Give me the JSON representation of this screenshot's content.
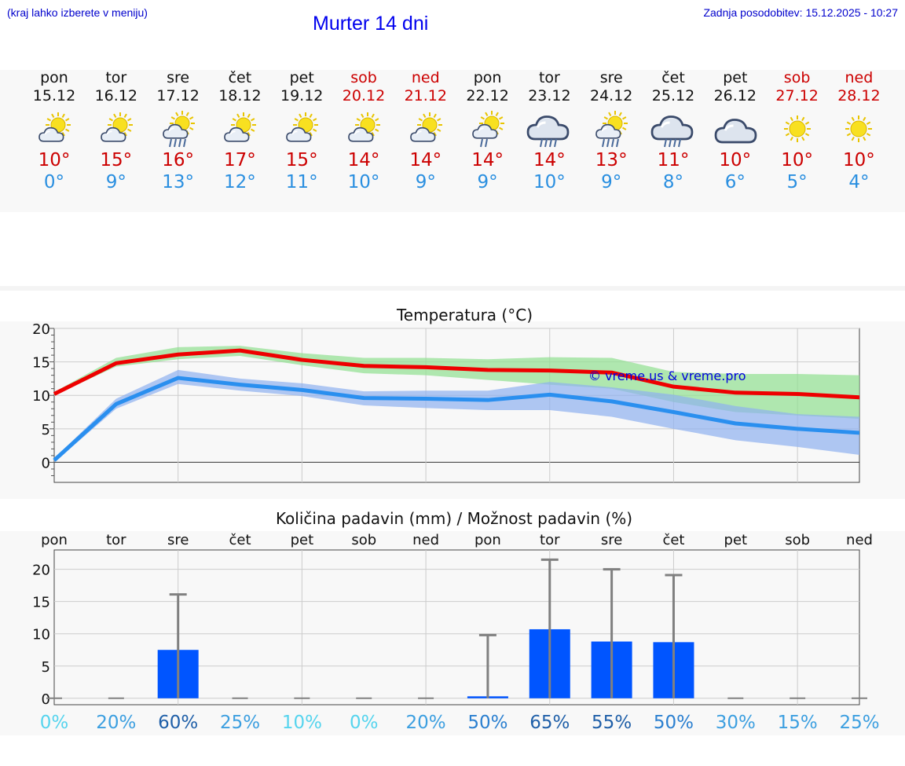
{
  "header": {
    "hint": "(kraj lahko izberete v meniju)",
    "title": "Murter 14 dni",
    "updated": "Zadnja posodobitev: 15.12.2025 - 10:27"
  },
  "colors": {
    "max": "#ee0000",
    "min": "#2a8fef",
    "weekend": "#cc0000",
    "bar": "#0055ff"
  },
  "days": [
    {
      "name": "pon",
      "date": "15.12",
      "weekend": false,
      "icon": "sun-cloud-icon",
      "tmax": "10°",
      "tmin": "0°"
    },
    {
      "name": "tor",
      "date": "16.12",
      "weekend": false,
      "icon": "sun-cloud-icon",
      "tmax": "15°",
      "tmin": "9°"
    },
    {
      "name": "sre",
      "date": "17.12",
      "weekend": false,
      "icon": "sun-rain-icon",
      "tmax": "16°",
      "tmin": "13°"
    },
    {
      "name": "čet",
      "date": "18.12",
      "weekend": false,
      "icon": "sun-cloud-icon",
      "tmax": "17°",
      "tmin": "12°"
    },
    {
      "name": "pet",
      "date": "19.12",
      "weekend": false,
      "icon": "sun-cloud-icon",
      "tmax": "15°",
      "tmin": "11°"
    },
    {
      "name": "sob",
      "date": "20.12",
      "weekend": true,
      "icon": "sun-cloud-icon",
      "tmax": "14°",
      "tmin": "10°"
    },
    {
      "name": "ned",
      "date": "21.12",
      "weekend": true,
      "icon": "sun-cloud-icon",
      "tmax": "14°",
      "tmin": "9°"
    },
    {
      "name": "pon",
      "date": "22.12",
      "weekend": false,
      "icon": "sun-rain-light-icon",
      "tmax": "14°",
      "tmin": "9°"
    },
    {
      "name": "tor",
      "date": "23.12",
      "weekend": false,
      "icon": "cloud-rain-icon",
      "tmax": "14°",
      "tmin": "10°"
    },
    {
      "name": "sre",
      "date": "24.12",
      "weekend": false,
      "icon": "sun-rain-icon",
      "tmax": "13°",
      "tmin": "9°"
    },
    {
      "name": "čet",
      "date": "25.12",
      "weekend": false,
      "icon": "cloud-rain-icon",
      "tmax": "11°",
      "tmin": "8°"
    },
    {
      "name": "pet",
      "date": "26.12",
      "weekend": false,
      "icon": "cloud-icon",
      "tmax": "10°",
      "tmin": "6°"
    },
    {
      "name": "sob",
      "date": "27.12",
      "weekend": true,
      "icon": "sun-icon",
      "tmax": "10°",
      "tmin": "5°"
    },
    {
      "name": "ned",
      "date": "28.12",
      "weekend": true,
      "icon": "sun-icon",
      "tmax": "10°",
      "tmin": "4°"
    }
  ],
  "chart_data": [
    {
      "type": "line",
      "title": "Temperatura (°C)",
      "ylim": [
        -3,
        20
      ],
      "yticks": [
        0,
        5,
        10,
        15,
        20
      ],
      "x": [
        0,
        1,
        2,
        3,
        4,
        5,
        6,
        7,
        8,
        9,
        10,
        11,
        12,
        13
      ],
      "watermark": "© vreme.us & vreme.pro",
      "series": [
        {
          "name": "max",
          "values": [
            10.2,
            14.8,
            16.1,
            16.7,
            15.3,
            14.4,
            14.2,
            13.8,
            13.7,
            13.4,
            11.3,
            10.4,
            10.2,
            9.7
          ],
          "band_low": [
            10.0,
            14.3,
            15.4,
            15.9,
            14.5,
            13.3,
            13.0,
            12.3,
            11.6,
            11.0,
            9.0,
            7.5,
            7.0,
            6.5
          ],
          "band_high": [
            10.5,
            15.6,
            17.2,
            17.4,
            16.3,
            15.6,
            15.6,
            15.4,
            15.7,
            15.6,
            13.5,
            13.2,
            13.2,
            13.0
          ]
        },
        {
          "name": "min",
          "values": [
            0.3,
            8.7,
            12.6,
            11.6,
            10.8,
            9.6,
            9.5,
            9.3,
            10.1,
            9.1,
            7.5,
            5.8,
            5.0,
            4.4
          ],
          "band_low": [
            0.0,
            8.0,
            11.7,
            10.7,
            9.9,
            8.5,
            8.1,
            7.8,
            7.8,
            6.8,
            5.0,
            3.3,
            2.3,
            1.1
          ],
          "band_high": [
            0.6,
            9.5,
            13.8,
            12.5,
            11.8,
            10.6,
            10.7,
            10.7,
            12.0,
            11.2,
            10.1,
            8.4,
            7.2,
            6.8
          ]
        }
      ]
    },
    {
      "type": "bar",
      "title": "Količina padavin (mm) / Možnost padavin (%)",
      "ylim": [
        -1,
        23
      ],
      "yticks": [
        0,
        5,
        10,
        15,
        20
      ],
      "categories": [
        "pon",
        "tor",
        "sre",
        "čet",
        "pet",
        "sob",
        "ned",
        "pon",
        "tor",
        "sre",
        "čet",
        "pet",
        "sob",
        "ned"
      ],
      "values": [
        0,
        0,
        7.5,
        0,
        0,
        0,
        0,
        0.3,
        10.7,
        8.8,
        8.7,
        0,
        0,
        0
      ],
      "error_high": [
        0,
        0,
        16.1,
        0,
        0,
        0,
        0,
        9.8,
        21.5,
        20.0,
        19.1,
        0,
        0,
        0
      ],
      "probability": [
        "0%",
        "20%",
        "60%",
        "25%",
        "10%",
        "0%",
        "20%",
        "50%",
        "65%",
        "55%",
        "50%",
        "30%",
        "15%",
        "25%"
      ],
      "probability_colors": [
        "#55d4ee",
        "#3c9fe0",
        "#1f5fa8",
        "#3c9fe0",
        "#55d4ee",
        "#55d4ee",
        "#3c9fe0",
        "#2a7fd0",
        "#1f5fa8",
        "#1f5fa8",
        "#2a7fd0",
        "#3c9fe0",
        "#3c9fe0",
        "#3c9fe0"
      ]
    }
  ]
}
